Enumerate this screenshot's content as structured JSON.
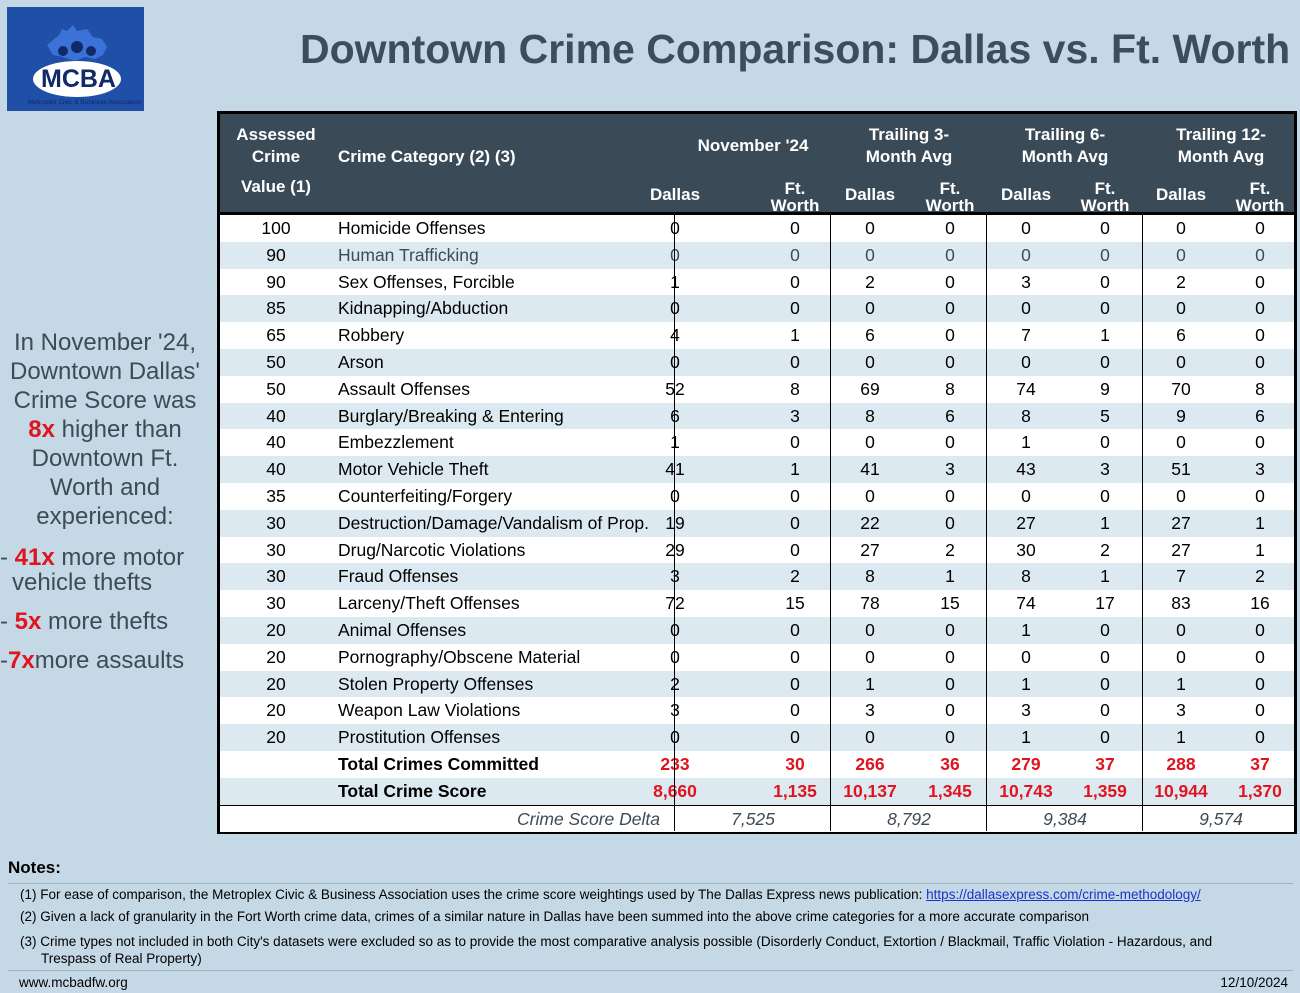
{
  "logo": {
    "text": "MCBA",
    "tagline": "Metroplex Civic & Business Association"
  },
  "title": "Downtown Crime Comparison: Dallas vs. Ft. Worth",
  "sidebar": {
    "line1": "In November '24,",
    "line2": "Downtown Dallas'",
    "line3": "Crime Score was",
    "mult": "8x",
    "line4": " higher than",
    "line5": "Downtown Ft.",
    "line6": "Worth and",
    "line7": "experienced:",
    "b1_dash": "- ",
    "b1_mult": "41x",
    "b1_text1": " more motor",
    "b1_text2": "vehicle thefts",
    "b2_dash": "- ",
    "b2_mult": "5x",
    "b2_text": " more thefts",
    "b3_dash": "-",
    "b3_mult": "7x",
    "b3_text": "more assaults"
  },
  "table": {
    "h_value1": "Assessed",
    "h_value2": "Crime",
    "h_value3": "Value (1)",
    "h_category": "Crime Category (2) (3)",
    "groups": [
      "November '24",
      "Trailing 3-",
      "Trailing 6-",
      "Trailing 12-"
    ],
    "groups2": [
      "",
      "Month Avg",
      "Month Avg",
      "Month Avg"
    ],
    "sub_dallas": "Dallas",
    "sub_ftw1": "Ft.",
    "sub_ftw2": "Worth"
  },
  "chart_data": {
    "type": "table",
    "title": "Downtown Crime Comparison: Dallas vs. Ft. Worth",
    "columns": [
      "Assessed Crime Value (1)",
      "Crime Category (2) (3)",
      "November '24 Dallas",
      "November '24 Ft. Worth",
      "Trailing 3-Month Avg Dallas",
      "Trailing 3-Month Avg Ft. Worth",
      "Trailing 6-Month Avg Dallas",
      "Trailing 6-Month Avg Ft. Worth",
      "Trailing 12-Month Avg Dallas",
      "Trailing 12-Month Avg Ft. Worth"
    ],
    "rows": [
      [
        "100",
        "Homicide Offenses",
        "0",
        "0",
        "0",
        "0",
        "0",
        "0",
        "0",
        "0"
      ],
      [
        "90",
        "Human Trafficking",
        "0",
        "0",
        "0",
        "0",
        "0",
        "0",
        "0",
        "0"
      ],
      [
        "90",
        "Sex Offenses, Forcible",
        "1",
        "0",
        "2",
        "0",
        "3",
        "0",
        "2",
        "0"
      ],
      [
        "85",
        "Kidnapping/Abduction",
        "0",
        "0",
        "0",
        "0",
        "0",
        "0",
        "0",
        "0"
      ],
      [
        "65",
        "Robbery",
        "4",
        "1",
        "6",
        "0",
        "7",
        "1",
        "6",
        "0"
      ],
      [
        "50",
        "Arson",
        "0",
        "0",
        "0",
        "0",
        "0",
        "0",
        "0",
        "0"
      ],
      [
        "50",
        "Assault Offenses",
        "52",
        "8",
        "69",
        "8",
        "74",
        "9",
        "70",
        "8"
      ],
      [
        "40",
        "Burglary/Breaking & Entering",
        "6",
        "3",
        "8",
        "6",
        "8",
        "5",
        "9",
        "6"
      ],
      [
        "40",
        "Embezzlement",
        "1",
        "0",
        "0",
        "0",
        "1",
        "0",
        "0",
        "0"
      ],
      [
        "40",
        "Motor Vehicle Theft",
        "41",
        "1",
        "41",
        "3",
        "43",
        "3",
        "51",
        "3"
      ],
      [
        "35",
        "Counterfeiting/Forgery",
        "0",
        "0",
        "0",
        "0",
        "0",
        "0",
        "0",
        "0"
      ],
      [
        "30",
        "Destruction/Damage/Vandalism of Prop.",
        "19",
        "0",
        "22",
        "0",
        "27",
        "1",
        "27",
        "1"
      ],
      [
        "30",
        "Drug/Narcotic Violations",
        "29",
        "0",
        "27",
        "2",
        "30",
        "2",
        "27",
        "1"
      ],
      [
        "30",
        "Fraud Offenses",
        "3",
        "2",
        "8",
        "1",
        "8",
        "1",
        "7",
        "2"
      ],
      [
        "30",
        "Larceny/Theft Offenses",
        "72",
        "15",
        "78",
        "15",
        "74",
        "17",
        "83",
        "16"
      ],
      [
        "20",
        "Animal Offenses",
        "0",
        "0",
        "0",
        "0",
        "1",
        "0",
        "0",
        "0"
      ],
      [
        "20",
        "Pornography/Obscene Material",
        "0",
        "0",
        "0",
        "0",
        "0",
        "0",
        "0",
        "0"
      ],
      [
        "20",
        "Stolen Property Offenses",
        "2",
        "0",
        "1",
        "0",
        "1",
        "0",
        "1",
        "0"
      ],
      [
        "20",
        "Weapon Law Violations",
        "3",
        "0",
        "3",
        "0",
        "3",
        "0",
        "3",
        "0"
      ],
      [
        "20",
        "Prostitution Offenses",
        "0",
        "0",
        "0",
        "0",
        "1",
        "0",
        "1",
        "0"
      ]
    ],
    "totals": [
      [
        "",
        "Total Crimes Committed",
        "233",
        "30",
        "266",
        "36",
        "279",
        "37",
        "288",
        "37"
      ],
      [
        "",
        "Total Crime Score",
        "8,660",
        "1,135",
        "10,137",
        "1,345",
        "10,743",
        "1,359",
        "10,944",
        "1,370"
      ]
    ],
    "delta_label": "Crime Score Delta",
    "deltas": [
      "7,525",
      "8,792",
      "9,384",
      "9,574"
    ]
  },
  "notes": {
    "heading": "Notes:",
    "n1": "(1) For ease of comparison, the Metroplex Civic & Business Association uses the crime score weightings used by The Dallas Express news publication: ",
    "n1_link": "https://dallasexpress.com/crime-methodology/",
    "n2": "(2) Given a lack of granularity in the Fort Worth crime data, crimes of a similar nature in Dallas have been summed into the above crime categories for a more accurate comparison",
    "n3a": "(3) Crime types not included in both City's datasets were excluded so as to provide the most comparative analysis possible (Disorderly Conduct, Extortion / Blackmail, Traffic Violation - Hazardous, and",
    "n3b": "Trespass of Real Property)"
  },
  "footer": {
    "website": "www.mcbadfw.org",
    "date": "12/10/2024"
  }
}
